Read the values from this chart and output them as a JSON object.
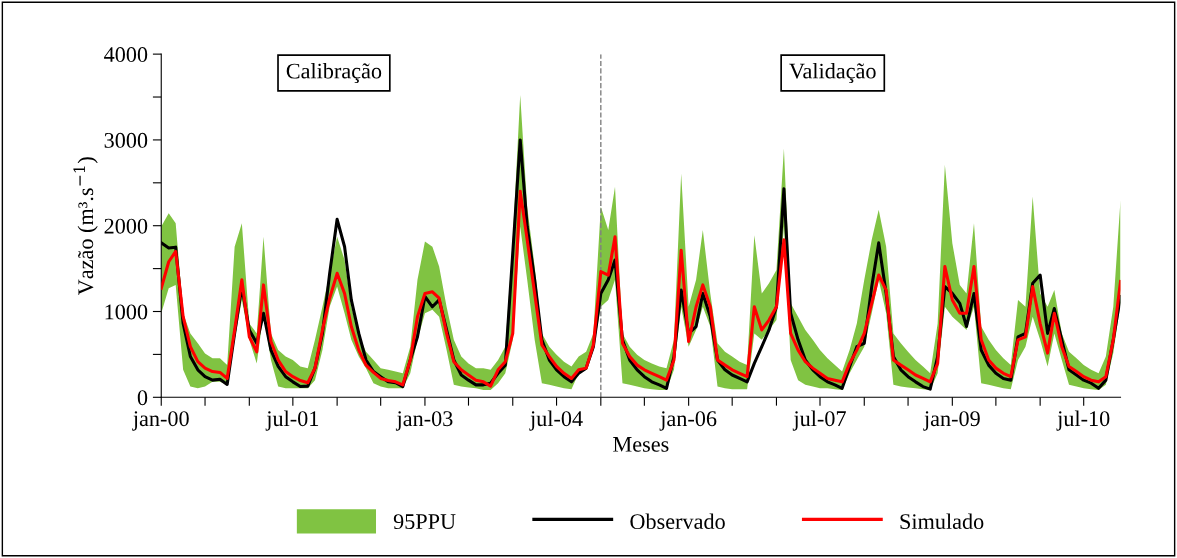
{
  "chart_data": {
    "type": "line",
    "xlabel": "Meses",
    "ylabel": "Vazão (m³.s$^{−1}$)",
    "x": [
      "2000-01",
      "2000-02",
      "2000-03",
      "2000-04",
      "2000-05",
      "2000-06",
      "2000-07",
      "2000-08",
      "2000-09",
      "2000-10",
      "2000-11",
      "2000-12",
      "2001-01",
      "2001-02",
      "2001-03",
      "2001-04",
      "2001-05",
      "2001-06",
      "2001-07",
      "2001-08",
      "2001-09",
      "2001-10",
      "2001-11",
      "2001-12",
      "2002-01",
      "2002-02",
      "2002-03",
      "2002-04",
      "2002-05",
      "2002-06",
      "2002-07",
      "2002-08",
      "2002-09",
      "2002-10",
      "2002-11",
      "2002-12",
      "2003-01",
      "2003-02",
      "2003-03",
      "2003-04",
      "2003-05",
      "2003-06",
      "2003-07",
      "2003-08",
      "2003-09",
      "2003-10",
      "2003-11",
      "2003-12",
      "2004-01",
      "2004-02",
      "2004-03",
      "2004-04",
      "2004-05",
      "2004-06",
      "2004-07",
      "2004-08",
      "2004-09",
      "2004-10",
      "2004-11",
      "2004-12",
      "2005-01",
      "2005-02",
      "2005-03",
      "2005-04",
      "2005-05",
      "2005-06",
      "2005-07",
      "2005-08",
      "2005-09",
      "2005-10",
      "2005-11",
      "2005-12",
      "2006-01",
      "2006-02",
      "2006-03",
      "2006-04",
      "2006-05",
      "2006-06",
      "2006-07",
      "2006-08",
      "2006-09",
      "2006-10",
      "2006-11",
      "2006-12",
      "2007-01",
      "2007-02",
      "2007-03",
      "2007-04",
      "2007-05",
      "2007-06",
      "2007-07",
      "2007-08",
      "2007-09",
      "2007-10",
      "2007-11",
      "2007-12",
      "2008-01",
      "2008-02",
      "2008-03",
      "2008-04",
      "2008-05",
      "2008-06",
      "2008-07",
      "2008-08",
      "2008-09",
      "2008-10",
      "2008-11",
      "2008-12",
      "2009-01",
      "2009-02",
      "2009-03",
      "2009-04",
      "2009-05",
      "2009-06",
      "2009-07",
      "2009-08",
      "2009-09",
      "2009-10",
      "2009-11",
      "2009-12",
      "2010-01",
      "2010-02",
      "2010-03",
      "2010-04",
      "2010-05",
      "2010-06",
      "2010-07",
      "2010-08",
      "2010-09",
      "2010-10",
      "2010-11",
      "2010-12"
    ],
    "series": [
      {
        "name": "95PPU",
        "type": "area",
        "color": "#80c342",
        "lower": [
          980,
          1270,
          1310,
          320,
          125,
          105,
          125,
          180,
          180,
          145,
          670,
          1135,
          670,
          395,
          980,
          435,
          125,
          105,
          105,
          105,
          105,
          200,
          550,
          1055,
          1290,
          980,
          670,
          475,
          340,
          165,
          125,
          105,
          105,
          105,
          280,
          670,
          980,
          1020,
          940,
          550,
          145,
          125,
          115,
          105,
          85,
          85,
          165,
          280,
          670,
          1990,
          1370,
          670,
          165,
          145,
          125,
          105,
          95,
          280,
          320,
          550,
          1055,
          1135,
          1370,
          165,
          145,
          125,
          105,
          95,
          85,
          85,
          320,
          1055,
          590,
          785,
          1055,
          825,
          125,
          105,
          95,
          95,
          95,
          745,
          670,
          785,
          900,
          1990,
          435,
          200,
          145,
          125,
          105,
          105,
          95,
          85,
          280,
          435,
          590,
          980,
          1370,
          980,
          145,
          125,
          115,
          105,
          95,
          85,
          280,
          1055,
          940,
          860,
          785,
          1055,
          165,
          145,
          125,
          105,
          95,
          435,
          590,
          940,
          670,
          360,
          745,
          435,
          145,
          125,
          105,
          95,
          85,
          145,
          515,
          1100
        ],
        "upper": [
          1990,
          2145,
          2030,
          980,
          745,
          630,
          510,
          455,
          455,
          375,
          1755,
          2030,
          860,
          745,
          1870,
          745,
          550,
          475,
          435,
          360,
          340,
          670,
          1055,
          1445,
          1870,
          1600,
          1055,
          725,
          530,
          435,
          340,
          320,
          300,
          280,
          590,
          1370,
          1815,
          1755,
          1525,
          1055,
          670,
          475,
          395,
          340,
          340,
          320,
          435,
          590,
          1835,
          3525,
          2220,
          1525,
          745,
          590,
          495,
          415,
          360,
          475,
          530,
          745,
          2220,
          1950,
          2455,
          745,
          590,
          495,
          435,
          395,
          360,
          340,
          670,
          2610,
          1055,
          1370,
          1950,
          1210,
          630,
          530,
          475,
          415,
          375,
          1890,
          1210,
          1330,
          1485,
          2900,
          1095,
          940,
          785,
          670,
          550,
          455,
          375,
          300,
          550,
          860,
          1370,
          1835,
          2185,
          1755,
          745,
          630,
          530,
          435,
          360,
          280,
          860,
          2710,
          1795,
          1310,
          1210,
          2030,
          825,
          670,
          550,
          455,
          375,
          1135,
          1055,
          2340,
          1210,
          1055,
          1250,
          745,
          530,
          455,
          375,
          320,
          280,
          475,
          1055,
          2300
        ],
        "values": [
          null,
          null,
          null,
          null,
          null,
          null,
          null,
          null,
          null,
          null,
          null,
          null,
          null,
          null,
          null,
          null,
          null,
          null,
          null,
          null,
          null,
          null,
          null,
          null,
          null,
          null,
          null,
          null,
          null,
          null,
          null,
          null,
          null,
          null,
          null,
          null,
          null,
          null,
          null,
          null,
          null,
          null,
          null,
          null,
          null,
          null,
          null,
          null,
          null,
          null,
          null,
          null,
          null,
          null,
          null,
          null,
          null,
          null,
          null,
          null,
          null,
          null,
          null,
          null,
          null,
          null,
          null,
          null,
          null,
          null,
          null,
          null,
          null,
          null,
          null,
          null,
          null,
          null,
          null,
          null,
          null,
          null,
          null,
          null,
          null,
          null,
          null,
          null,
          null,
          null,
          null,
          null,
          null,
          null,
          null,
          null,
          null,
          null,
          null,
          null,
          null,
          null,
          null,
          null,
          null,
          null,
          null,
          null,
          null,
          null,
          null,
          null,
          null,
          null,
          null,
          null,
          null,
          null,
          null,
          null,
          null,
          null,
          null,
          null,
          null,
          null,
          null,
          null,
          null,
          null,
          null,
          null
        ]
      },
      {
        "name": "Observado",
        "color": "#000000",
        "values": [
          1800,
          1740,
          1750,
          860,
          475,
          320,
          240,
          200,
          210,
          150,
          745,
          1290,
          785,
          630,
          980,
          550,
          360,
          240,
          180,
          125,
          130,
          340,
          745,
          1445,
          2075,
          1755,
          1135,
          745,
          435,
          300,
          240,
          180,
          170,
          125,
          435,
          705,
          1175,
          1055,
          1135,
          785,
          435,
          260,
          200,
          145,
          145,
          165,
          280,
          375,
          1680,
          3000,
          1990,
          1370,
          670,
          435,
          320,
          240,
          180,
          280,
          340,
          590,
          1210,
          1370,
          1600,
          670,
          435,
          320,
          240,
          180,
          145,
          105,
          475,
          1250,
          745,
          825,
          1210,
          940,
          435,
          320,
          260,
          220,
          180,
          395,
          590,
          785,
          1055,
          2430,
          980,
          670,
          435,
          320,
          240,
          180,
          145,
          105,
          355,
          590,
          630,
          1290,
          1800,
          1210,
          475,
          320,
          240,
          180,
          125,
          95,
          475,
          1290,
          1210,
          1095,
          825,
          1210,
          550,
          375,
          280,
          220,
          200,
          705,
          745,
          1330,
          1425,
          745,
          1035,
          670,
          320,
          260,
          200,
          165,
          105,
          200,
          670,
          1175
        ]
      },
      {
        "name": "Simulado",
        "color": "#ff0000",
        "values": [
          1270,
          1580,
          1700,
          940,
          590,
          415,
          340,
          300,
          290,
          220,
          785,
          1370,
          705,
          530,
          1310,
          650,
          435,
          300,
          240,
          195,
          170,
          340,
          785,
          1155,
          1445,
          1210,
          825,
          550,
          375,
          290,
          220,
          195,
          180,
          145,
          435,
          940,
          1210,
          1230,
          1155,
          745,
          415,
          320,
          260,
          200,
          180,
          130,
          320,
          415,
          745,
          2400,
          1835,
          1210,
          610,
          475,
          360,
          280,
          220,
          320,
          340,
          610,
          1465,
          1425,
          1870,
          630,
          475,
          375,
          320,
          280,
          240,
          200,
          435,
          1715,
          650,
          1055,
          1310,
          1055,
          435,
          375,
          320,
          280,
          240,
          1055,
          785,
          900,
          1055,
          1835,
          745,
          550,
          415,
          340,
          280,
          220,
          200,
          180,
          395,
          550,
          745,
          1095,
          1425,
          1250,
          435,
          375,
          320,
          260,
          220,
          180,
          395,
          1525,
          1135,
          980,
          980,
          1525,
          670,
          435,
          340,
          280,
          240,
          670,
          705,
          1290,
          860,
          515,
          980,
          590,
          360,
          300,
          240,
          200,
          180,
          240,
          670,
          1350
        ]
      }
    ],
    "xlim": [
      "2000-01",
      "2010-12"
    ],
    "xticks": [
      {
        "value": "2000-01",
        "label": "jan-00"
      },
      {
        "value": "2000-07",
        "label": null
      },
      {
        "value": "2001-01",
        "label": null
      },
      {
        "value": "2001-07",
        "label": "jul-01"
      },
      {
        "value": "2002-01",
        "label": null
      },
      {
        "value": "2002-07",
        "label": null
      },
      {
        "value": "2003-01",
        "label": "jan-03"
      },
      {
        "value": "2003-07",
        "label": null
      },
      {
        "value": "2004-01",
        "label": null
      },
      {
        "value": "2004-07",
        "label": "jul-04"
      },
      {
        "value": "2005-01",
        "label": null
      },
      {
        "value": "2005-07",
        "label": null
      },
      {
        "value": "2006-01",
        "label": "jan-06"
      },
      {
        "value": "2006-07",
        "label": null
      },
      {
        "value": "2007-01",
        "label": null
      },
      {
        "value": "2007-07",
        "label": "jul-07"
      },
      {
        "value": "2008-01",
        "label": null
      },
      {
        "value": "2008-07",
        "label": null
      },
      {
        "value": "2009-01",
        "label": "jan-09"
      },
      {
        "value": "2009-07",
        "label": null
      },
      {
        "value": "2010-01",
        "label": null
      },
      {
        "value": "2010-07",
        "label": "jul-10"
      }
    ],
    "ylim": [
      0,
      4000
    ],
    "yticks": [
      0,
      {
        "value": 500,
        "label": null
      },
      1000,
      {
        "value": 1500,
        "label": null
      },
      2000,
      {
        "value": 2500,
        "label": null
      },
      3000,
      {
        "value": 3500,
        "label": null
      },
      4000
    ],
    "ref_lines": [
      {
        "axis": "x",
        "value": "2005-01",
        "color": "#808080",
        "line_style": "dashed"
      }
    ],
    "annotations": [
      "Calibração",
      "Validação"
    ],
    "legend": "bottom",
    "grid": false,
    "line_style": "solid",
    "marker": "none"
  }
}
